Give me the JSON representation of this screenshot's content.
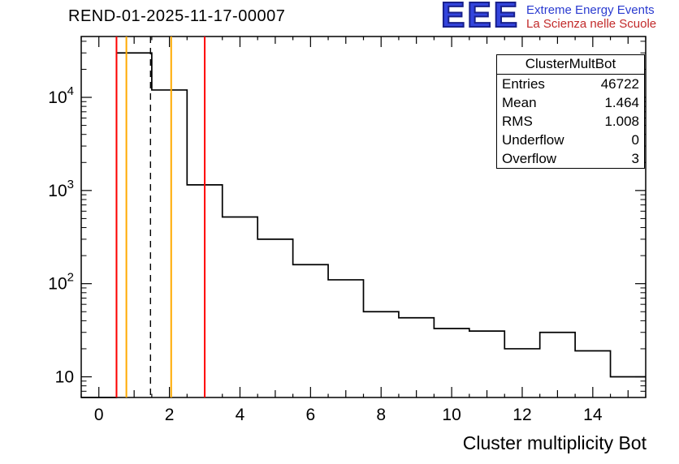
{
  "page": {
    "title": "REND-01-2025-11-17-00007"
  },
  "logo": {
    "acronym": "EEE",
    "line1": "Extreme Energy Events",
    "line2": "La Scienza nelle Scuole",
    "acronym_color": "#3344dd",
    "line1_color": "#2a3bd0",
    "line2_color": "#c22a2a"
  },
  "stats_box": {
    "title": "ClusterMultBot",
    "rows": [
      {
        "label": "Entries",
        "value": "46722"
      },
      {
        "label": "Mean",
        "value": "1.464"
      },
      {
        "label": "RMS",
        "value": "1.008"
      },
      {
        "label": "Underflow",
        "value": "0"
      },
      {
        "label": "Overflow",
        "value": "3"
      }
    ]
  },
  "chart_data": {
    "type": "bar",
    "render_style": "step-histogram",
    "title": "REND-01-2025-11-17-00007",
    "xlabel": "Cluster multiplicity Bot",
    "ylabel": "",
    "y_scale": "log",
    "x_range": [
      -0.5,
      15.5
    ],
    "y_range_log": [
      6,
      45000
    ],
    "bin_width": 1,
    "bin_centers": [
      0,
      1,
      2,
      3,
      4,
      5,
      6,
      7,
      8,
      9,
      10,
      11,
      12,
      13,
      14,
      15
    ],
    "bin_counts": [
      0,
      30000,
      12000,
      1150,
      520,
      300,
      160,
      110,
      50,
      43,
      33,
      31,
      20,
      30,
      19,
      10
    ],
    "x_major_ticks": [
      0,
      2,
      4,
      6,
      8,
      10,
      12,
      14
    ],
    "x_tick_labels": [
      "0",
      "2",
      "4",
      "6",
      "8",
      "10",
      "12",
      "14"
    ],
    "y_major_ticks": [
      10,
      100,
      1000,
      10000
    ],
    "y_tick_labels": [
      "10",
      "10^2",
      "10^3",
      "10^4"
    ],
    "line_color": "#000000",
    "vertical_lines": [
      {
        "x": 0.5,
        "color": "#ff0000",
        "style": "solid",
        "width": 2
      },
      {
        "x": 0.78,
        "color": "#ffaa00",
        "style": "solid",
        "width": 2
      },
      {
        "x": 1.464,
        "color": "#000000",
        "style": "dashed",
        "width": 1.4
      },
      {
        "x": 2.05,
        "color": "#ffaa00",
        "style": "solid",
        "width": 2
      },
      {
        "x": 3.0,
        "color": "#ff0000",
        "style": "solid",
        "width": 2
      }
    ],
    "grid": false,
    "legend": false
  }
}
